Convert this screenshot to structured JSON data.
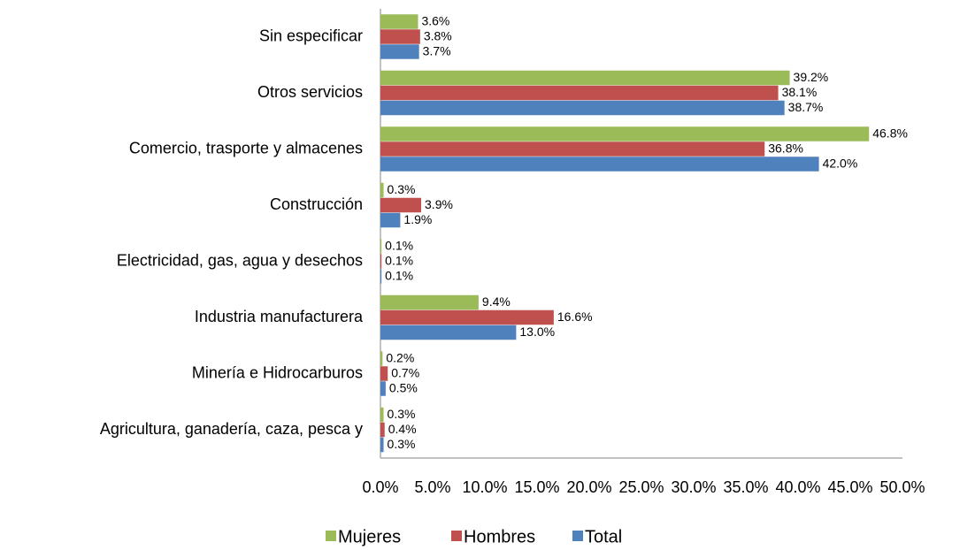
{
  "chart_data": {
    "type": "bar",
    "orientation": "horizontal",
    "categories": [
      "Sin especificar",
      "Otros servicios",
      "Comercio, trasporte y  almacenes",
      "Construcción",
      "Electricidad, gas, agua y desechos",
      "Industria manufacturera",
      "Minería e Hidrocarburos",
      "Agricultura, ganadería, caza, pesca y"
    ],
    "series": [
      {
        "name": "Mujeres",
        "color": "#9bbb59",
        "values": [
          3.6,
          39.2,
          46.8,
          0.3,
          0.1,
          9.4,
          0.2,
          0.3
        ],
        "value_labels": [
          "3.6%",
          "39.2%",
          "46.8%",
          "0.3%",
          "0.1%",
          "9.4%",
          "0.2%",
          "0.3%"
        ]
      },
      {
        "name": "Hombres",
        "color": "#c0504d",
        "values": [
          3.8,
          38.1,
          36.8,
          3.9,
          0.1,
          16.6,
          0.7,
          0.4
        ],
        "value_labels": [
          "3.8%",
          "38.1%",
          "36.8%",
          "3.9%",
          "0.1%",
          "16.6%",
          "0.7%",
          "0.4%"
        ]
      },
      {
        "name": "Total",
        "color": "#4f81bd",
        "values": [
          3.7,
          38.7,
          42.0,
          1.9,
          0.1,
          13.0,
          0.5,
          0.3
        ],
        "value_labels": [
          "3.7%",
          "38.7%",
          "42.0%",
          "1.9%",
          "0.1%",
          "13.0%",
          "0.5%",
          "0.3%"
        ]
      }
    ],
    "xlim": [
      0,
      50
    ],
    "xticks": [
      {
        "value": 0,
        "label": "0.0%"
      },
      {
        "value": 5,
        "label": "5.0%"
      },
      {
        "value": 10,
        "label": "10.0%"
      },
      {
        "value": 15,
        "label": "15.0%"
      },
      {
        "value": 20,
        "label": "20.0%"
      },
      {
        "value": 25,
        "label": "25.0%"
      },
      {
        "value": 30,
        "label": "30.0%"
      },
      {
        "value": 35,
        "label": "35.0%"
      },
      {
        "value": 40,
        "label": "40.0%"
      },
      {
        "value": 45,
        "label": "45.0%"
      },
      {
        "value": 50,
        "label": "50.0%"
      }
    ],
    "legend": "bottom",
    "grid": false
  }
}
